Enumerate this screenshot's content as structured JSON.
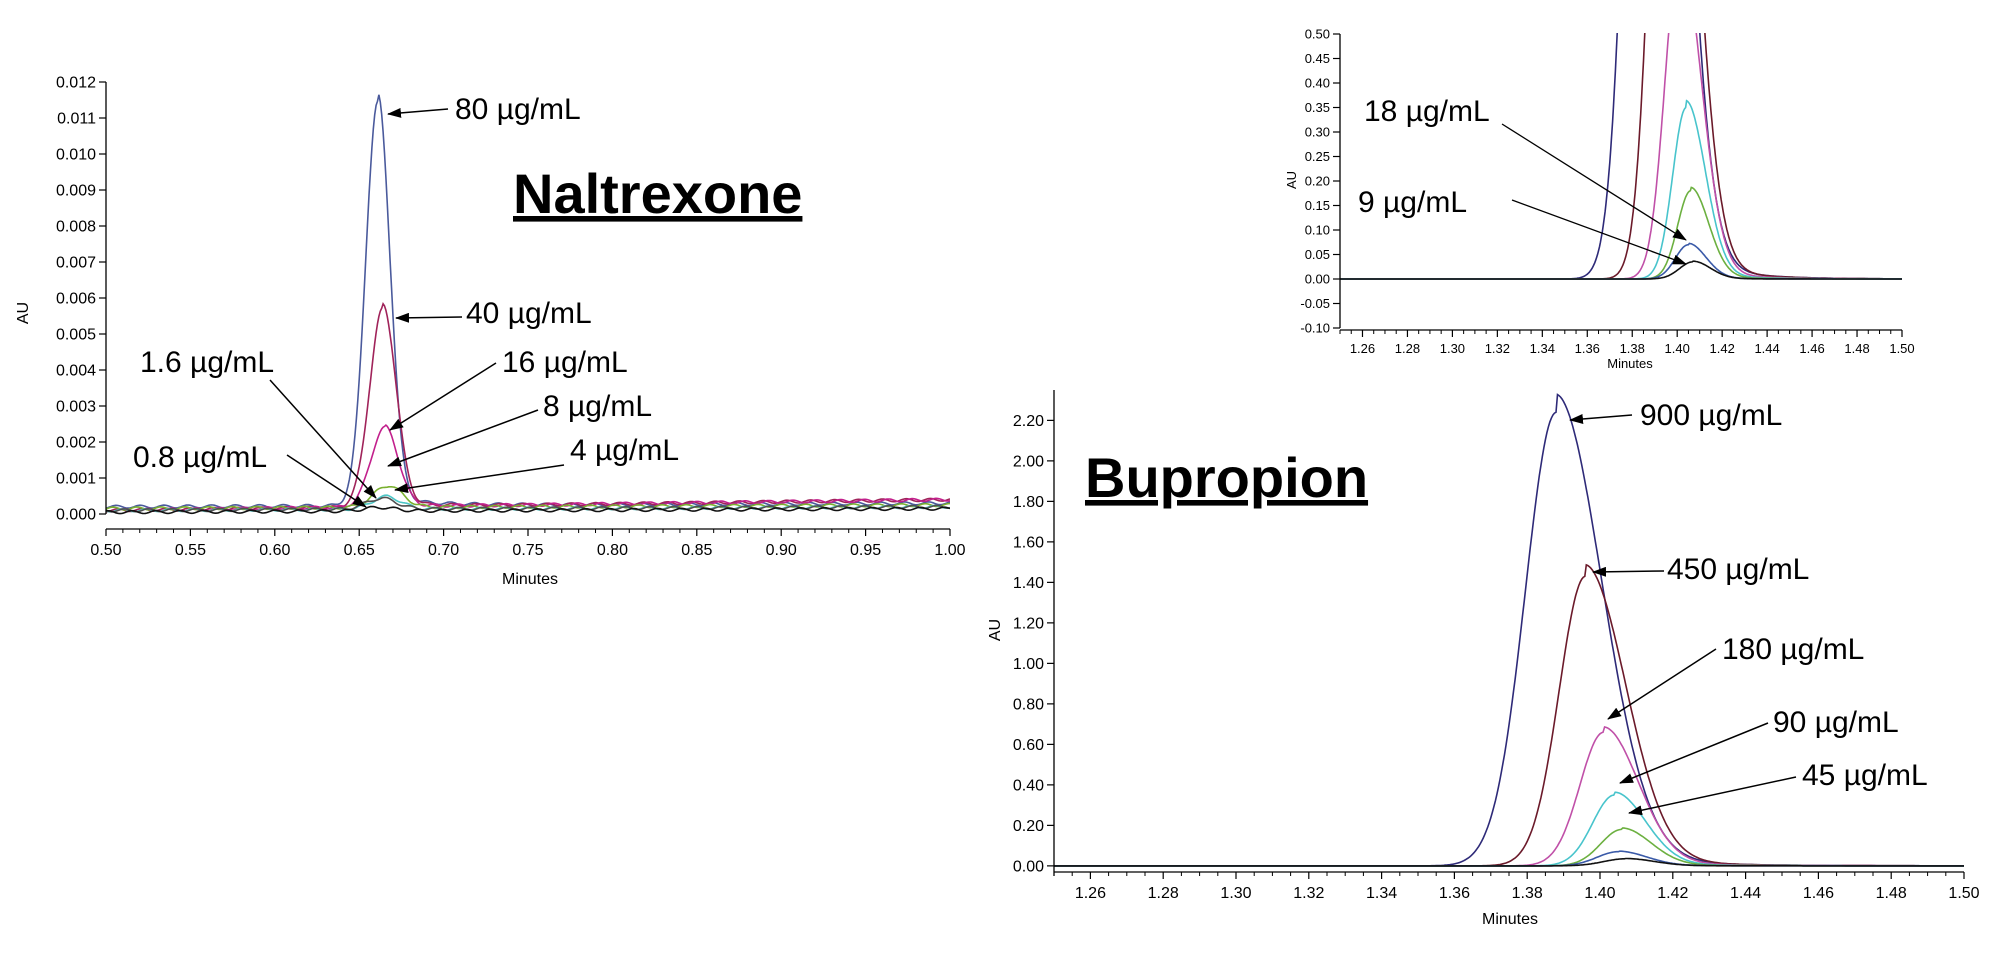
{
  "chart_data": [
    {
      "type": "line",
      "title": "Naltrexone",
      "xlabel": "Minutes",
      "ylabel": "AU",
      "xlim": [
        0.5,
        1.0
      ],
      "ylim": [
        0.0,
        0.012
      ],
      "xticks": [
        "0.50",
        "0.55",
        "0.60",
        "0.65",
        "0.70",
        "0.75",
        "0.80",
        "0.85",
        "0.90",
        "0.95",
        "1.00"
      ],
      "yticks": [
        "0.000",
        "0.001",
        "0.002",
        "0.003",
        "0.004",
        "0.005",
        "0.006",
        "0.007",
        "0.008",
        "0.009",
        "0.010",
        "0.011",
        "0.012"
      ],
      "series": [
        {
          "name": "80 µg/mL",
          "color": "#4a5a9c",
          "peak_x": 0.661,
          "peak_y": 0.0112,
          "sigma": 0.0072,
          "baseline": 0.0002,
          "drift": 0.0001
        },
        {
          "name": "40 µg/mL",
          "color": "#a0235a",
          "peak_x": 0.664,
          "peak_y": 0.0055,
          "sigma": 0.0078,
          "baseline": 0.0001,
          "drift": 0.0003
        },
        {
          "name": "16 µg/mL",
          "color": "#c2208c",
          "peak_x": 0.665,
          "peak_y": 0.0022,
          "sigma": 0.008,
          "baseline": 0.0001,
          "drift": 0.0003
        },
        {
          "name": "8 µg/mL",
          "color": "#7ab030",
          "peak_x": 0.667,
          "peak_y": 0.0006,
          "sigma": 0.0085,
          "baseline": 0.00015,
          "drift": 0.0001
        },
        {
          "name": "4 µg/mL",
          "color": "#4cc6c6",
          "peak_x": 0.666,
          "peak_y": 0.00035,
          "sigma": 0.0085,
          "baseline": 0.0001,
          "drift": 0.0001
        },
        {
          "name": "1.6 µg/mL",
          "color": "#505050",
          "peak_x": 0.663,
          "peak_y": 0.0003,
          "sigma": 0.009,
          "baseline": 0.0001,
          "drift": 0.0001
        },
        {
          "name": "0.8 µg/mL",
          "color": "#111111",
          "peak_x": 0.662,
          "peak_y": 0.0001,
          "sigma": 0.009,
          "baseline": 5e-05,
          "drift": 0.0001
        }
      ],
      "annotations": [
        {
          "text": "80 µg/mL"
        },
        {
          "text": "40 µg/mL"
        },
        {
          "text": "16 µg/mL"
        },
        {
          "text": "8 µg/mL"
        },
        {
          "text": "4 µg/mL"
        },
        {
          "text": "1.6 µg/mL"
        },
        {
          "text": "0.8 µg/mL"
        }
      ]
    },
    {
      "type": "line",
      "title": "Bupropion",
      "xlabel": "Minutes",
      "ylabel": "AU",
      "xlim": [
        1.25,
        1.5
      ],
      "ylim": [
        -0.05,
        2.35
      ],
      "xticks": [
        "1.26",
        "1.28",
        "1.30",
        "1.32",
        "1.34",
        "1.36",
        "1.38",
        "1.40",
        "1.42",
        "1.44",
        "1.46",
        "1.48",
        "1.50"
      ],
      "yticks": [
        "0.00",
        "0.20",
        "0.40",
        "0.60",
        "0.80",
        "1.00",
        "1.20",
        "1.40",
        "1.60",
        "1.80",
        "2.00",
        "2.20"
      ],
      "series": [
        {
          "name": "900 µg/mL",
          "color": "#2e2a78",
          "peak_x": 1.388,
          "peak_y": 2.24,
          "sigma_left": 0.0085,
          "sigma_right": 0.0125
        },
        {
          "name": "450 µg/mL",
          "color": "#6b1a2a",
          "peak_x": 1.396,
          "peak_y": 1.43,
          "sigma_left": 0.0072,
          "sigma_right": 0.011
        },
        {
          "name": "180 µg/mL",
          "color": "#c050a8",
          "peak_x": 1.401,
          "peak_y": 0.66,
          "sigma_left": 0.0065,
          "sigma_right": 0.0095
        },
        {
          "name": "90 µg/mL",
          "color": "#48c4cc",
          "peak_x": 1.404,
          "peak_y": 0.35,
          "sigma_left": 0.006,
          "sigma_right": 0.0085
        },
        {
          "name": "45 µg/mL",
          "color": "#6cb040",
          "peak_x": 1.406,
          "peak_y": 0.18,
          "sigma_left": 0.0058,
          "sigma_right": 0.008
        },
        {
          "name": "18 µg/mL",
          "color": "#3a5aa8",
          "peak_x": 1.405,
          "peak_y": 0.07,
          "sigma_left": 0.0058,
          "sigma_right": 0.0078
        },
        {
          "name": "9 µg/mL",
          "color": "#111111",
          "peak_x": 1.407,
          "peak_y": 0.035,
          "sigma_left": 0.006,
          "sigma_right": 0.0078
        }
      ],
      "annotations": [
        {
          "text": "900 µg/mL"
        },
        {
          "text": "450 µg/mL"
        },
        {
          "text": "180 µg/mL"
        },
        {
          "text": "90 µg/mL"
        },
        {
          "text": "45 µg/mL"
        }
      ]
    },
    {
      "type": "line",
      "title": "",
      "xlabel": "Minutes",
      "ylabel": "AU",
      "xlim": [
        1.25,
        1.5
      ],
      "ylim": [
        -0.1,
        0.5
      ],
      "xticks": [
        "1.26",
        "1.28",
        "1.30",
        "1.32",
        "1.34",
        "1.36",
        "1.38",
        "1.40",
        "1.42",
        "1.44",
        "1.46",
        "1.48",
        "1.50"
      ],
      "yticks": [
        "-0.10",
        "-0.05",
        "0.00",
        "0.05",
        "0.10",
        "0.15",
        "0.20",
        "0.25",
        "0.30",
        "0.35",
        "0.40",
        "0.45",
        "0.50"
      ],
      "note_series_from": "Bupropion",
      "annotations": [
        {
          "text": "18 µg/mL"
        },
        {
          "text": "9 µg/mL"
        }
      ]
    }
  ]
}
